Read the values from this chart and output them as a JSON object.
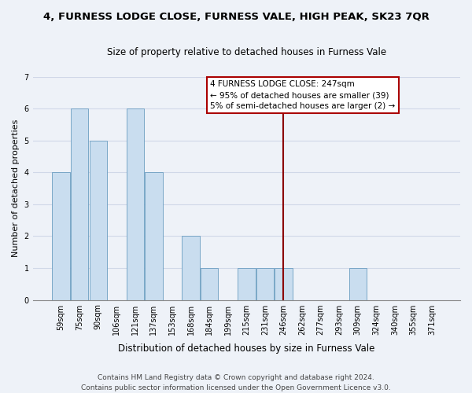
{
  "title": "4, FURNESS LODGE CLOSE, FURNESS VALE, HIGH PEAK, SK23 7QR",
  "subtitle": "Size of property relative to detached houses in Furness Vale",
  "xlabel": "Distribution of detached houses by size in Furness Vale",
  "ylabel": "Number of detached properties",
  "bar_labels": [
    "59sqm",
    "75sqm",
    "90sqm",
    "106sqm",
    "121sqm",
    "137sqm",
    "153sqm",
    "168sqm",
    "184sqm",
    "199sqm",
    "215sqm",
    "231sqm",
    "246sqm",
    "262sqm",
    "277sqm",
    "293sqm",
    "309sqm",
    "324sqm",
    "340sqm",
    "355sqm",
    "371sqm"
  ],
  "bar_heights": [
    4,
    6,
    5,
    0,
    6,
    4,
    0,
    2,
    1,
    0,
    1,
    1,
    1,
    0,
    0,
    0,
    1,
    0,
    0,
    0,
    0
  ],
  "normal_color": "#c9ddef",
  "reference_line_color": "#8b0000",
  "reference_line_x": 12.0,
  "ylim": [
    0,
    7
  ],
  "yticks": [
    0,
    1,
    2,
    3,
    4,
    5,
    6,
    7
  ],
  "legend_title": "4 FURNESS LODGE CLOSE: 247sqm",
  "legend_line1": "← 95% of detached houses are smaller (39)",
  "legend_line2": "5% of semi-detached houses are larger (2) →",
  "footer_line1": "Contains HM Land Registry data © Crown copyright and database right 2024.",
  "footer_line2": "Contains public sector information licensed under the Open Government Licence v3.0.",
  "background_color": "#eef2f8",
  "grid_color": "#d0d8e8",
  "legend_box_color": "#ffffff",
  "legend_border_color": "#aa0000",
  "title_fontsize": 9.5,
  "subtitle_fontsize": 8.5,
  "ylabel_fontsize": 8,
  "xlabel_fontsize": 8.5,
  "tick_fontsize": 7,
  "legend_fontsize": 7.5,
  "footer_fontsize": 6.5
}
